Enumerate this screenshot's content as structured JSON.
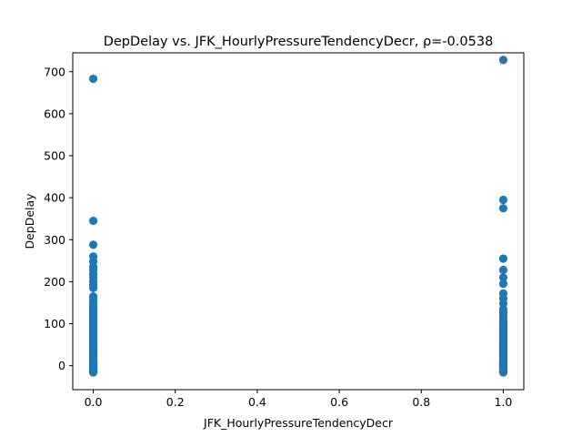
{
  "chart_data": {
    "type": "scatter",
    "title": "DepDelay vs. JFK_HourlyPressureTendencyDecr, ρ=-0.0538",
    "xlabel": "JFK_HourlyPressureTendencyDecr",
    "ylabel": "DepDelay",
    "xlim": [
      -0.05,
      1.05
    ],
    "ylim": [
      -57,
      745
    ],
    "xticks": [
      0.0,
      0.2,
      0.4,
      0.6,
      0.8,
      1.0
    ],
    "xtick_labels": [
      "0.0",
      "0.2",
      "0.4",
      "0.6",
      "0.8",
      "1.0"
    ],
    "yticks": [
      0,
      100,
      200,
      300,
      400,
      500,
      600,
      700
    ],
    "ytick_labels": [
      "0",
      "100",
      "200",
      "300",
      "400",
      "500",
      "600",
      "700"
    ],
    "grid": false,
    "marker_color": "#1f77b4",
    "series": [
      {
        "x": [
          0,
          0,
          0,
          0,
          0,
          0,
          0,
          0,
          0,
          0,
          0,
          0,
          0,
          0,
          0,
          0,
          0,
          0,
          0,
          0,
          0,
          0,
          0,
          0,
          0,
          0,
          0,
          0,
          0,
          0,
          0,
          0,
          0,
          0,
          0,
          0,
          0,
          0,
          0,
          0,
          0,
          0,
          0,
          0,
          0,
          0,
          0,
          0,
          0,
          0,
          0,
          0,
          0,
          0,
          0,
          0,
          0,
          0,
          0,
          0,
          0,
          0,
          0,
          0,
          0,
          0,
          0,
          0,
          0,
          0,
          0,
          0,
          0,
          0,
          0,
          0,
          0,
          0,
          0,
          0,
          0,
          0,
          0,
          0,
          0,
          0,
          0,
          0,
          0,
          0,
          0
        ],
        "y": [
          683,
          345,
          288,
          260,
          248,
          235,
          228,
          218,
          210,
          200,
          192,
          185,
          165,
          158,
          150,
          142,
          135,
          128,
          120,
          112,
          105,
          98,
          90,
          82,
          75,
          70,
          65,
          60,
          55,
          50,
          46,
          42,
          38,
          34,
          30,
          27,
          24,
          21,
          18,
          15,
          12,
          10,
          8,
          6,
          4,
          2,
          0,
          -2,
          -4,
          -6,
          -8,
          -10,
          -12,
          -14,
          -16,
          22,
          28,
          32,
          36,
          40,
          44,
          48,
          52,
          56,
          62,
          68,
          72,
          78,
          85,
          88,
          95,
          100,
          108,
          115,
          118,
          125,
          132,
          138,
          145,
          1,
          3,
          5,
          7,
          9,
          11,
          13,
          -1,
          -3,
          -5,
          -7,
          -9
        ]
      },
      {
        "x": [
          1,
          1,
          1,
          1,
          1,
          1,
          1,
          1,
          1,
          1,
          1,
          1,
          1,
          1,
          1,
          1,
          1,
          1,
          1,
          1,
          1,
          1,
          1,
          1,
          1,
          1,
          1,
          1,
          1,
          1,
          1,
          1,
          1,
          1,
          1,
          1,
          1,
          1,
          1,
          1,
          1,
          1,
          1,
          1,
          1,
          1,
          1,
          1,
          1,
          1,
          1,
          1,
          1,
          1,
          1,
          1,
          1,
          1,
          1,
          1,
          1,
          1,
          1,
          1,
          1,
          1,
          1,
          1,
          1,
          1,
          1,
          1,
          1,
          1,
          1,
          1
        ],
        "y": [
          728,
          395,
          375,
          255,
          228,
          210,
          195,
          172,
          160,
          148,
          135,
          128,
          120,
          112,
          105,
          98,
          90,
          82,
          75,
          70,
          65,
          60,
          55,
          50,
          46,
          42,
          38,
          34,
          30,
          27,
          24,
          21,
          18,
          15,
          12,
          10,
          8,
          6,
          4,
          2,
          0,
          -2,
          -4,
          -6,
          -8,
          -10,
          -12,
          -14,
          -16,
          22,
          28,
          32,
          36,
          40,
          44,
          48,
          52,
          56,
          62,
          68,
          72,
          78,
          85,
          88,
          95,
          100,
          1,
          3,
          5,
          7,
          9,
          -1,
          -3,
          -5,
          -7,
          -9
        ]
      }
    ]
  }
}
